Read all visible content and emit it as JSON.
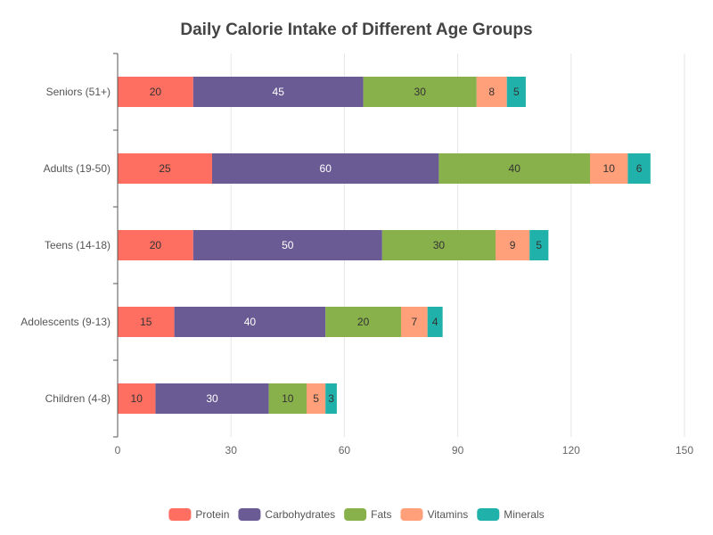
{
  "chart_data": {
    "type": "bar",
    "orientation": "horizontal",
    "stacked": true,
    "title": "Daily Calorie Intake of Different Age Groups",
    "xlabel": "",
    "ylabel": "",
    "categories": [
      "Children (4-8)",
      "Adolescents (9-13)",
      "Teens (14-18)",
      "Adults (19-50)",
      "Seniors (51+)"
    ],
    "series": [
      {
        "name": "Protein",
        "color": "#ff6f61",
        "label_color": "#333333",
        "values": [
          10,
          15,
          20,
          25,
          20
        ]
      },
      {
        "name": "Carbohydrates",
        "color": "#6b5b95",
        "label_color": "#ffffff",
        "values": [
          30,
          40,
          50,
          60,
          45
        ]
      },
      {
        "name": "Fats",
        "color": "#88b04b",
        "label_color": "#333333",
        "values": [
          10,
          20,
          30,
          40,
          30
        ]
      },
      {
        "name": "Vitamins",
        "color": "#ffa07a",
        "label_color": "#333333",
        "values": [
          5,
          7,
          9,
          10,
          8
        ]
      },
      {
        "name": "Minerals",
        "color": "#20b2aa",
        "label_color": "#333333",
        "values": [
          3,
          4,
          5,
          6,
          5
        ]
      }
    ],
    "xlim": [
      0,
      150
    ],
    "xticks": [
      0,
      30,
      60,
      90,
      120,
      150
    ],
    "grid": true,
    "legend_position": "bottom-center"
  }
}
